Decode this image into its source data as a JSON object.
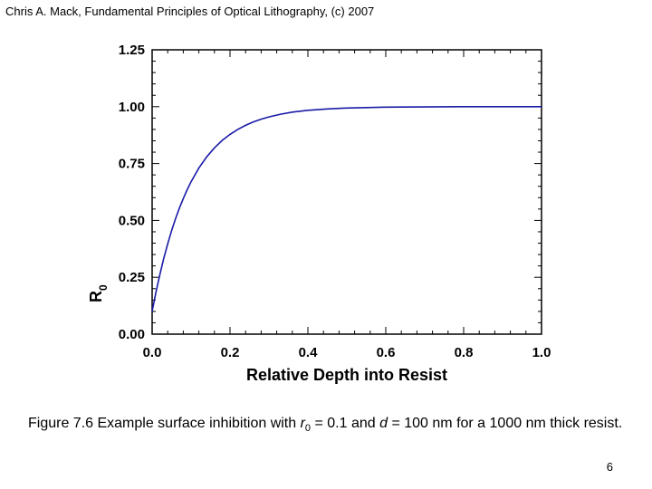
{
  "header": {
    "text": "Chris A. Mack, Fundamental Principles of Optical Lithography, (c) 2007"
  },
  "chart_data": {
    "type": "line",
    "title": "",
    "xlabel": "Relative Depth into Resist",
    "ylabel": "R",
    "ylabel_subscript": "0",
    "xlim": [
      0,
      1
    ],
    "ylim": [
      0,
      1.25
    ],
    "x_ticks": [
      "0.0",
      "0.2",
      "0.4",
      "0.6",
      "0.8",
      "1.0"
    ],
    "y_ticks": [
      "0.00",
      "0.25",
      "0.50",
      "0.75",
      "1.00",
      "1.25"
    ],
    "grid": false,
    "series": [
      {
        "color": "#1a1aa8",
        "x": [
          0,
          0.01,
          0.02,
          0.03,
          0.04,
          0.05,
          0.06,
          0.07,
          0.08,
          0.09,
          0.1,
          0.12,
          0.14,
          0.16,
          0.18,
          0.2,
          0.22,
          0.24,
          0.26,
          0.28,
          0.3,
          0.33,
          0.36,
          0.4,
          0.45,
          0.5,
          0.6,
          0.7,
          0.8,
          0.9,
          1.0
        ],
        "y": [
          0.1,
          0.186,
          0.263,
          0.334,
          0.397,
          0.455,
          0.507,
          0.554,
          0.596,
          0.635,
          0.67,
          0.73,
          0.779,
          0.819,
          0.852,
          0.878,
          0.9,
          0.918,
          0.933,
          0.945,
          0.955,
          0.967,
          0.976,
          0.984,
          0.99,
          0.994,
          0.998,
          0.999,
          1.0,
          1.0,
          1.0
        ]
      }
    ]
  },
  "caption": {
    "prefix": "Figure 7.6  Example surface inhibition with ",
    "r_symbol": "r",
    "r_subscript": "0",
    "middle": " = 0.1 and ",
    "d_symbol": "d",
    "suffix": " = 100 nm for a 1000 nm thick resist."
  },
  "page_number": "6"
}
